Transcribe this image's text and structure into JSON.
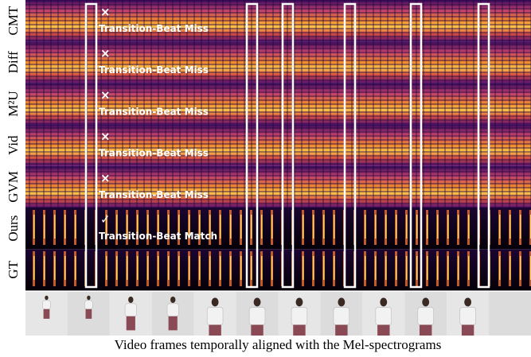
{
  "rows": [
    {
      "label": "CMT",
      "mark": "×",
      "annotation": "Transition-Beat Miss"
    },
    {
      "label": "Diff",
      "mark": "×",
      "annotation": "Transition-Beat Miss"
    },
    {
      "label": "M²U",
      "mark": "×",
      "annotation": "Transition-Beat Miss"
    },
    {
      "label": "Vid",
      "mark": "×",
      "annotation": "Transition-Beat Miss"
    },
    {
      "label": "GVM",
      "mark": "×",
      "annotation": "Transition-Beat Miss"
    },
    {
      "label": "Ours",
      "mark": "✓",
      "annotation": "Transition-Beat Match"
    },
    {
      "label": "GT"
    }
  ],
  "caption": "Video frames temporally aligned with the Mel-spectrograms"
}
